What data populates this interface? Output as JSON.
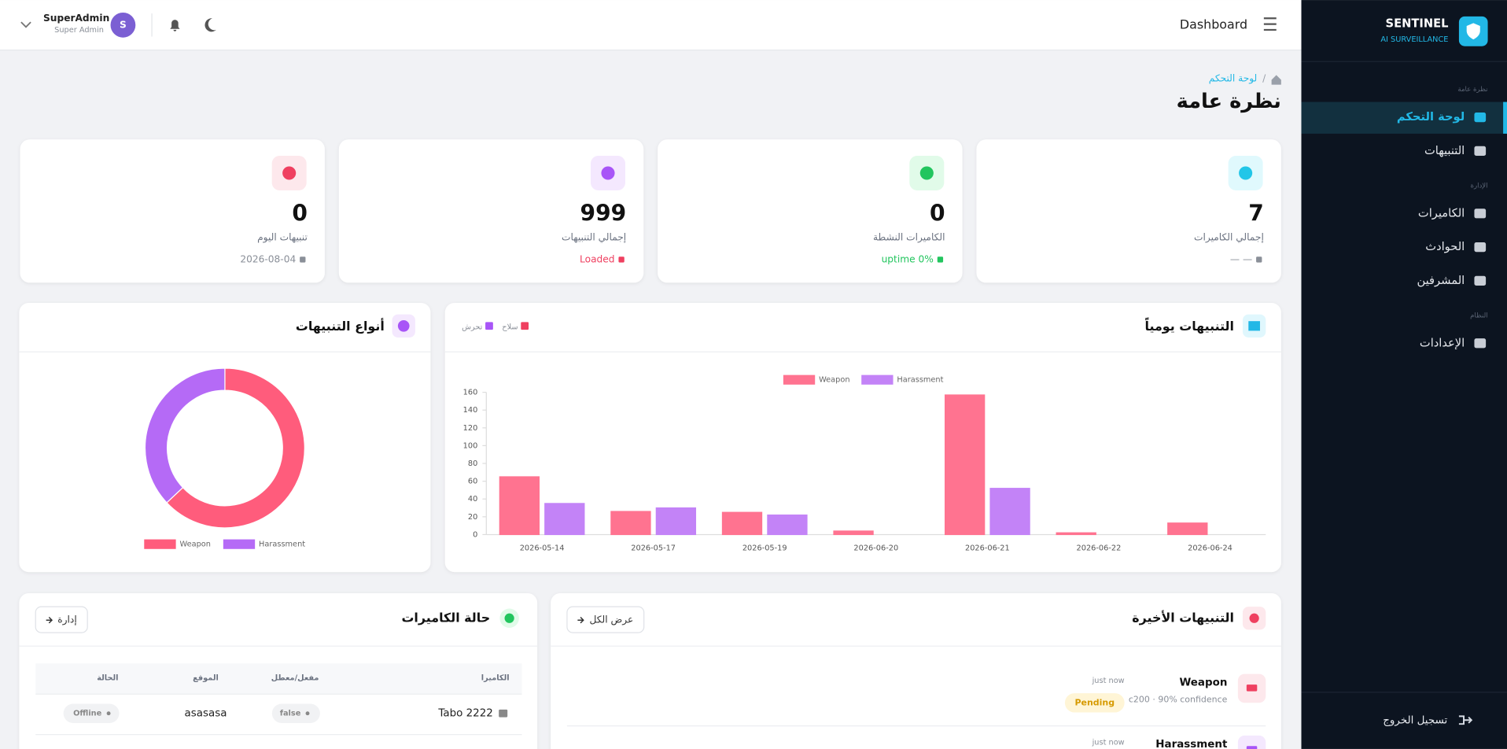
{
  "header": {
    "page_title": "Dashboard",
    "user_name": "SuperAdmin",
    "user_role": "Super Admin",
    "avatar_initial": "S"
  },
  "sidebar": {
    "brand": "SENTINEL",
    "tagline": "AI SURVEILLANCE",
    "sections": [
      {
        "title": "نظرة عامة",
        "items": [
          "لوحة التحكم",
          "التنبيهات"
        ]
      },
      {
        "title": "الإدارة",
        "items": [
          "الكاميرات",
          "الحوادث",
          "المشرفين"
        ]
      },
      {
        "title": "النظام",
        "items": [
          "الإعدادات"
        ]
      }
    ],
    "logout": "تسجيل الخروج"
  },
  "breadcrumb": {
    "current": "لوحة التحكم"
  },
  "page_title": "نظرة عامة",
  "stats": [
    {
      "value": 7,
      "label": "إجمالي الكاميرات",
      "note": "— —"
    },
    {
      "value": 0,
      "label": "الكاميرات النشطة",
      "note": "uptime 0%"
    },
    {
      "value": 999,
      "label": "إجمالي التنبيهات",
      "note": "Loaded"
    },
    {
      "value": 0,
      "label": "تنبيهات اليوم",
      "note": "2026-08-04"
    }
  ],
  "chart_cards": [
    {
      "title": "التنبيهات يومياً",
      "legend": [
        "سلاح",
        "تحرش"
      ]
    },
    {
      "title": "أنواع التنبيهات"
    }
  ],
  "chart_data": [
    {
      "type": "bar",
      "categories": [
        "2026-05-14",
        "2026-05-17",
        "2026-05-19",
        "2026-06-20",
        "2026-06-21",
        "2026-06-22",
        "2026-06-24"
      ],
      "series": [
        {
          "name": "Weapon",
          "color": "#ff7390",
          "values": [
            65,
            26,
            25,
            4,
            157,
            2,
            13
          ]
        },
        {
          "name": "Harassment",
          "color": "#c383f7",
          "values": [
            35,
            30,
            22,
            0,
            52,
            0,
            0
          ]
        }
      ],
      "ylim": [
        0,
        160
      ],
      "yticks": [
        0,
        20,
        40,
        60,
        80,
        100,
        120,
        140,
        160
      ],
      "grid": false,
      "legend": "top"
    },
    {
      "type": "doughnut",
      "categories": [
        "Weapon",
        "Harassment"
      ],
      "values": [
        63,
        37
      ],
      "colors": [
        "#ff5c7c",
        "#b56af6"
      ],
      "legend": "bottom"
    }
  ],
  "recent_alerts": {
    "title": "التنبيهات الأخيرة",
    "button": "عرض الكل",
    "items": [
      {
        "type": "Weapon",
        "time": "just now",
        "status": "Pending",
        "detail": "c200 · 90% confidence"
      },
      {
        "type": "Harassment",
        "time": "just now"
      }
    ]
  },
  "camera_status": {
    "title": "حالة الكاميرات",
    "button": "إدارة",
    "columns": [
      "الكاميرا",
      "مفعل/معطل",
      "الموقع",
      "الحالة"
    ],
    "rows": [
      [
        "Tabo 2222",
        "false",
        "asasasa",
        "Offline"
      ]
    ]
  }
}
